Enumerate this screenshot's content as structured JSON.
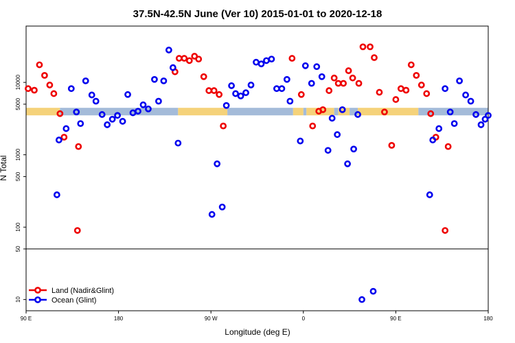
{
  "chart_data": {
    "type": "scatter",
    "title": "37.5N-42.5N June (Ver 10)   2015-01-01 to 2020-12-18",
    "xlabel": "Longitude (deg E)",
    "ylabel": "N Total",
    "x_ticks": [
      {
        "value": 90,
        "label": "90 E"
      },
      {
        "value": 180,
        "label": "180"
      },
      {
        "value": 270,
        "label": "90 W"
      },
      {
        "value": 360,
        "label": "0"
      },
      {
        "value": 450,
        "label": "90 E"
      },
      {
        "value": 540,
        "label": "180"
      }
    ],
    "y_ticks": [
      {
        "value": 10,
        "label": "10"
      },
      {
        "value": 50,
        "label": "50"
      },
      {
        "value": 100,
        "label": "100"
      },
      {
        "value": 500,
        "label": "500"
      },
      {
        "value": 1000,
        "label": "1000"
      },
      {
        "value": 5000,
        "label": "5000"
      },
      {
        "value": 10000,
        "label": "10000"
      }
    ],
    "xlim": [
      90,
      540
    ],
    "ylim_log": [
      7,
      60000
    ],
    "y_break": 50,
    "land_mask": [
      {
        "start": 90,
        "end": 123,
        "type": "land"
      },
      {
        "start": 123,
        "end": 238,
        "type": "ocean"
      },
      {
        "start": 238,
        "end": 286,
        "type": "land"
      },
      {
        "start": 286,
        "end": 350,
        "type": "ocean"
      },
      {
        "start": 350,
        "end": 360,
        "type": "land"
      },
      {
        "start": 360,
        "end": 363,
        "type": "ocean"
      },
      {
        "start": 363,
        "end": 390,
        "type": "land"
      },
      {
        "start": 390,
        "end": 394,
        "type": "ocean"
      },
      {
        "start": 394,
        "end": 405,
        "type": "land"
      },
      {
        "start": 405,
        "end": 413,
        "type": "ocean"
      },
      {
        "start": 413,
        "end": 472,
        "type": "land"
      },
      {
        "start": 472,
        "end": 540,
        "type": "ocean"
      }
    ],
    "land_color": "#f5d27a",
    "ocean_color": "#a4bbd9",
    "band_value": 3950,
    "series": [
      {
        "name": "Land (Nadir&Glint)",
        "color": "#ee0000",
        "points": [
          [
            92,
            8200
          ],
          [
            98,
            7800
          ],
          [
            103,
            17500
          ],
          [
            108,
            12500
          ],
          [
            113,
            9200
          ],
          [
            117,
            7000
          ],
          [
            123,
            3700
          ],
          [
            127,
            1750
          ],
          [
            140,
            90
          ],
          [
            141,
            1300
          ],
          [
            235,
            14000
          ],
          [
            239,
            21500
          ],
          [
            244,
            21500
          ],
          [
            249,
            20000
          ],
          [
            254,
            23000
          ],
          [
            258,
            21000
          ],
          [
            263,
            12000
          ],
          [
            268,
            7700
          ],
          [
            273,
            7700
          ],
          [
            278,
            6800
          ],
          [
            282,
            2500
          ],
          [
            349,
            21500
          ],
          [
            358,
            6800
          ],
          [
            369,
            2500
          ],
          [
            375,
            4000
          ],
          [
            379,
            4200
          ],
          [
            385,
            7700
          ],
          [
            390,
            11500
          ],
          [
            394,
            9700
          ],
          [
            399,
            9700
          ],
          [
            404,
            14500
          ],
          [
            408,
            11500
          ],
          [
            414,
            9700
          ],
          [
            418,
            31000
          ],
          [
            425,
            31000
          ],
          [
            429,
            22000
          ],
          [
            434,
            7300
          ],
          [
            439,
            3900
          ],
          [
            446,
            1350
          ],
          [
            450,
            5800
          ],
          [
            455,
            8200
          ],
          [
            460,
            7800
          ],
          [
            465,
            17500
          ],
          [
            470,
            12500
          ],
          [
            475,
            9200
          ],
          [
            480,
            7000
          ],
          [
            484,
            3700
          ],
          [
            489,
            1750
          ],
          [
            498,
            90
          ],
          [
            501,
            1300
          ]
        ]
      },
      {
        "name": "Ocean (Glint)",
        "color": "#0000ee",
        "points": [
          [
            120,
            280
          ],
          [
            122,
            1600
          ],
          [
            129,
            2300
          ],
          [
            134,
            8200
          ],
          [
            139,
            3900
          ],
          [
            143,
            2700
          ],
          [
            148,
            10500
          ],
          [
            154,
            6700
          ],
          [
            158,
            5500
          ],
          [
            164,
            3600
          ],
          [
            169,
            2600
          ],
          [
            174,
            3100
          ],
          [
            179,
            3500
          ],
          [
            184,
            2900
          ],
          [
            189,
            6800
          ],
          [
            194,
            3800
          ],
          [
            199,
            4000
          ],
          [
            204,
            4900
          ],
          [
            209,
            4300
          ],
          [
            215,
            11000
          ],
          [
            219,
            5500
          ],
          [
            224,
            10500
          ],
          [
            229,
            28000
          ],
          [
            233,
            16000
          ],
          [
            238,
            1450
          ],
          [
            271,
            150
          ],
          [
            276,
            750
          ],
          [
            281,
            190
          ],
          [
            285,
            4800
          ],
          [
            290,
            9000
          ],
          [
            294,
            7000
          ],
          [
            299,
            6500
          ],
          [
            304,
            7200
          ],
          [
            309,
            9200
          ],
          [
            314,
            19000
          ],
          [
            319,
            18000
          ],
          [
            324,
            20000
          ],
          [
            329,
            21000
          ],
          [
            334,
            8200
          ],
          [
            339,
            8200
          ],
          [
            344,
            11000
          ],
          [
            347,
            5500
          ],
          [
            357,
            1550
          ],
          [
            362,
            17000
          ],
          [
            368,
            9700
          ],
          [
            373,
            16500
          ],
          [
            378,
            12000
          ],
          [
            384,
            1150
          ],
          [
            388,
            3200
          ],
          [
            393,
            1900
          ],
          [
            398,
            4200
          ],
          [
            403,
            750
          ],
          [
            409,
            1200
          ],
          [
            413,
            3600
          ],
          [
            417,
            10
          ],
          [
            428,
            13
          ],
          [
            483,
            280
          ],
          [
            486,
            1600
          ],
          [
            492,
            2300
          ],
          [
            498,
            8200
          ],
          [
            503,
            3900
          ],
          [
            507,
            2700
          ],
          [
            512,
            10500
          ],
          [
            518,
            6700
          ],
          [
            523,
            5500
          ],
          [
            528,
            3600
          ],
          [
            533,
            2600
          ],
          [
            537,
            3100
          ],
          [
            540,
            3500
          ]
        ]
      }
    ],
    "legend": {
      "position": "bottom-left",
      "entries": [
        {
          "label": "Land (Nadir&Glint)",
          "color": "#ee0000"
        },
        {
          "label": "Ocean (Glint)",
          "color": "#0000ee"
        }
      ]
    }
  }
}
